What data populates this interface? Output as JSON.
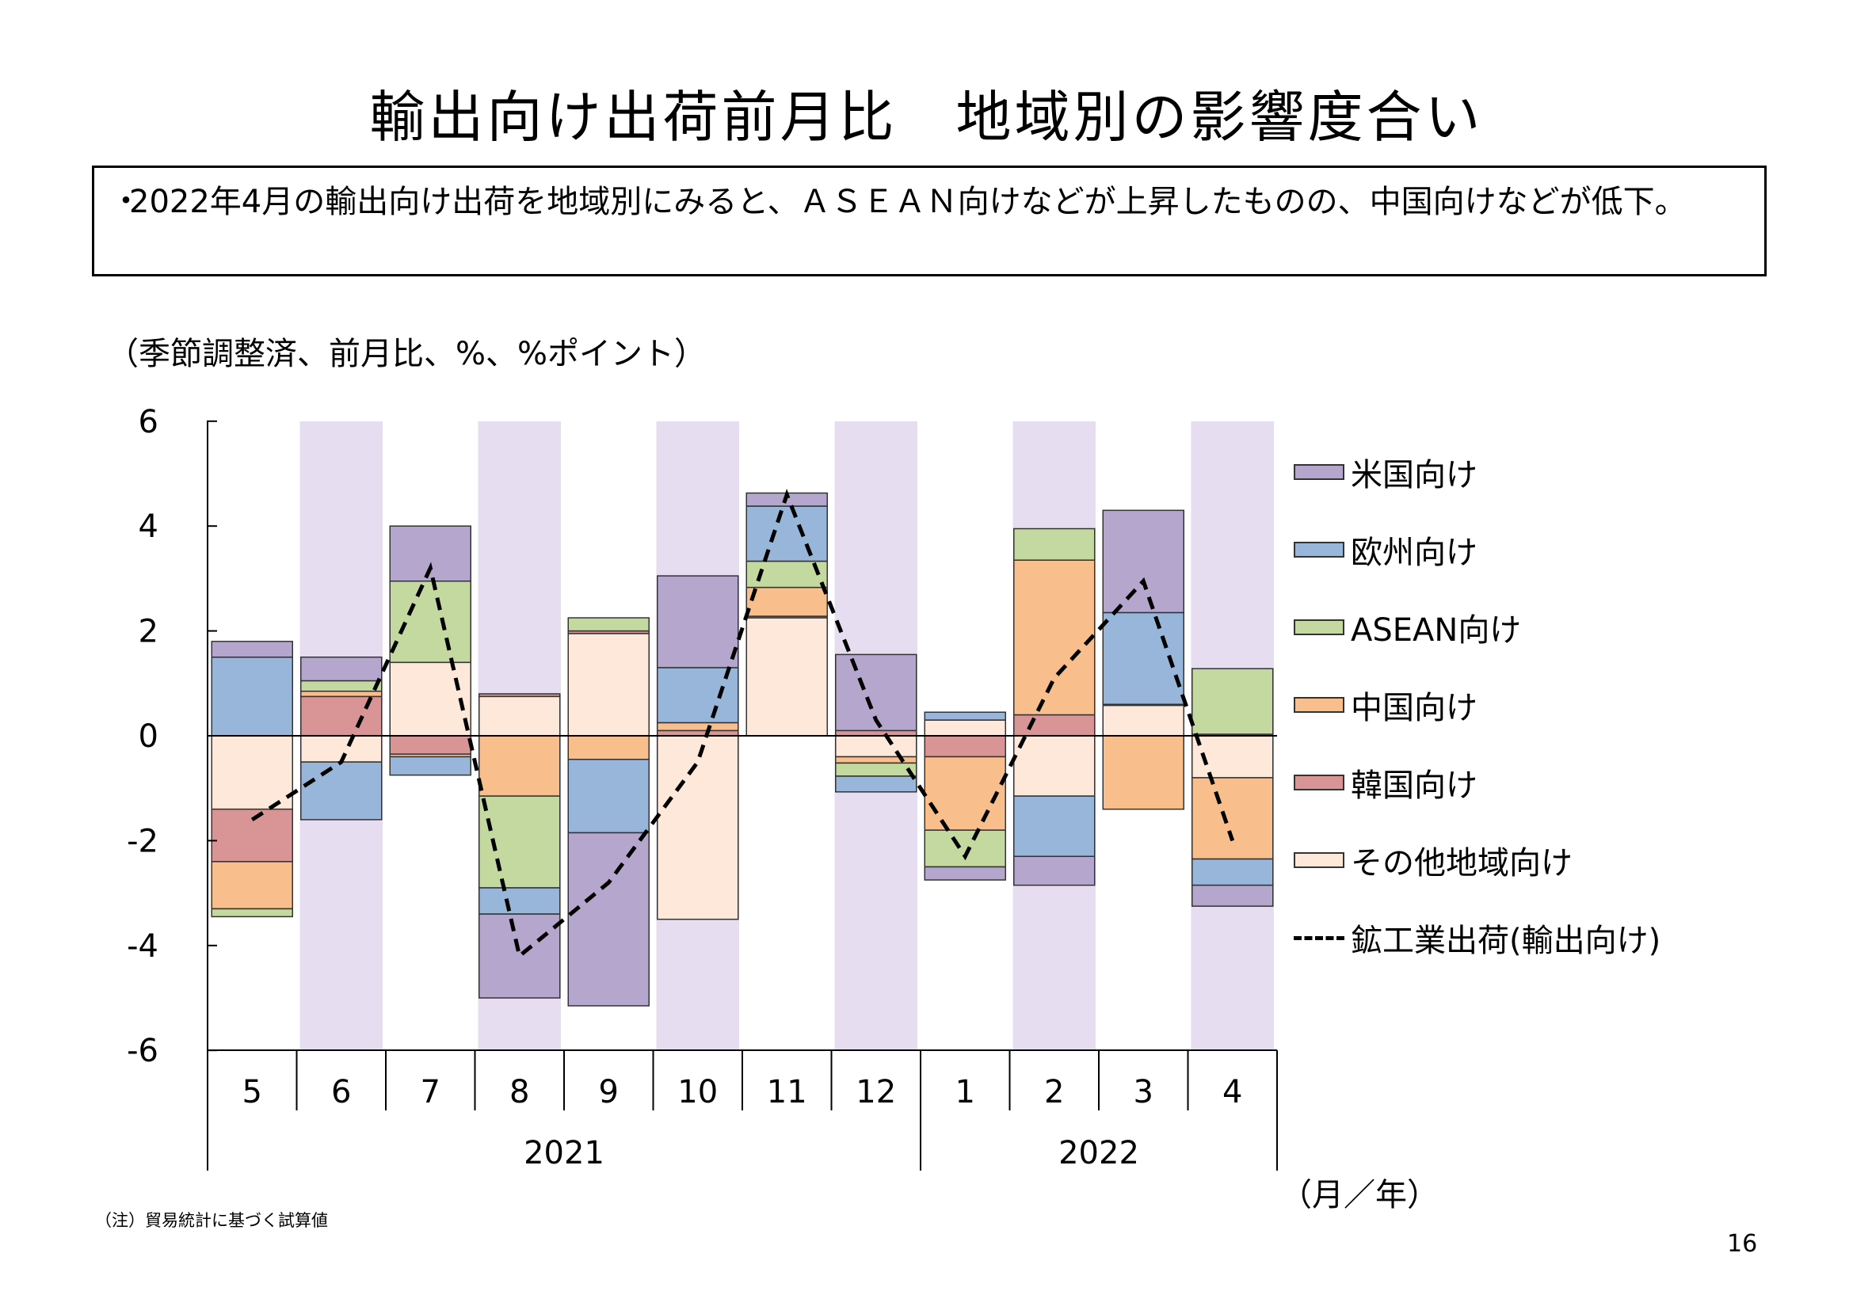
{
  "title": "輸出向け出荷前月比　地域別の影響度合い",
  "summary": {
    "bullet": "・",
    "text": "2022年4月の輸出向け出荷を地域別にみると、ＡＳＥＡＮ向けなどが上昇したものの、中国向けなどが低下。"
  },
  "unit_label": "（季節調整済、前月比、%、%ポイント）",
  "x_unit_label": "（月／年）",
  "note": "（注）貿易統計に基づく試算値",
  "page_number": "16",
  "chart_data": {
    "type": "bar",
    "subtype": "stacked-bar-with-line",
    "categories": [
      "5",
      "6",
      "7",
      "8",
      "9",
      "10",
      "11",
      "12",
      "1",
      "2",
      "3",
      "4"
    ],
    "year_groups": [
      {
        "label": "2021",
        "start": 0,
        "end": 7
      },
      {
        "label": "2022",
        "start": 8,
        "end": 11
      }
    ],
    "ylim": [
      -6,
      6
    ],
    "yticks": [
      "6",
      "4",
      "2",
      "0",
      "-2",
      "-4",
      "-6"
    ],
    "ytick_values": [
      6,
      4,
      2,
      0,
      -2,
      -4,
      -6
    ],
    "shaded_categories": [
      1,
      3,
      5,
      7,
      9,
      11
    ],
    "shade_color": "#e6def0",
    "series": [
      {
        "name": "その他地域向け",
        "color": "#fde8da",
        "values": [
          -1.4,
          -0.5,
          1.4,
          0.75,
          1.95,
          -3.5,
          2.25,
          -0.4,
          0.3,
          -1.15,
          0.58,
          -0.8
        ]
      },
      {
        "name": "韓国向け",
        "color": "#d99595",
        "values": [
          -1.0,
          0.75,
          -0.35,
          0.05,
          0.05,
          0.1,
          0.03,
          0.1,
          -0.4,
          0.4,
          0.02,
          0.03
        ]
      },
      {
        "name": "中国向け",
        "color": "#f8bf8c",
        "values": [
          -0.9,
          0.1,
          -0.05,
          -1.15,
          -0.45,
          0.15,
          0.55,
          -0.12,
          -1.4,
          2.95,
          -1.4,
          -1.55
        ]
      },
      {
        "name": "ASEAN向け",
        "color": "#c4d9a0",
        "values": [
          -0.15,
          0.2,
          1.55,
          -1.75,
          0.25,
          0.0,
          0.5,
          -0.25,
          -0.7,
          0.6,
          0.0,
          1.25
        ]
      },
      {
        "name": "欧州向け",
        "color": "#97b6d9",
        "values": [
          1.5,
          -1.1,
          -0.35,
          -0.5,
          -1.4,
          1.05,
          1.05,
          -0.3,
          0.15,
          -1.15,
          1.75,
          -0.5
        ]
      },
      {
        "name": "米国向け",
        "color": "#b4a6cd",
        "values": [
          0.3,
          0.45,
          1.05,
          -1.6,
          -3.3,
          1.75,
          0.25,
          1.45,
          -0.25,
          -0.55,
          1.95,
          -0.4
        ]
      }
    ],
    "line": {
      "name": "鉱工業出荷(輸出向け)",
      "color": "#000000",
      "values": [
        -1.6,
        -0.5,
        3.2,
        -4.2,
        -2.8,
        -0.5,
        4.6,
        0.3,
        -2.3,
        1.1,
        2.95,
        -2.0
      ]
    },
    "legend_order": [
      "米国向け",
      "欧州向け",
      "ASEAN向け",
      "中国向け",
      "韓国向け",
      "その他地域向け",
      "鉱工業出荷(輸出向け)"
    ],
    "legend_position": "right"
  }
}
